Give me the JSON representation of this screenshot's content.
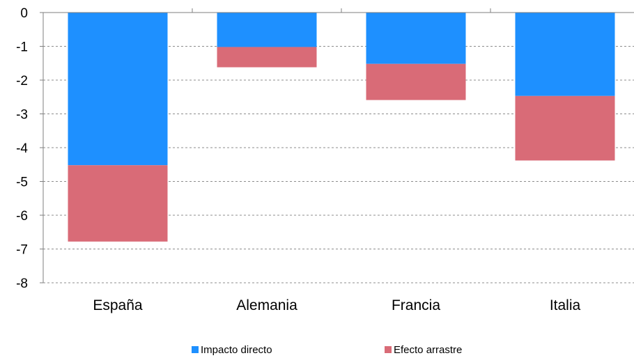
{
  "chart_data": {
    "type": "bar",
    "stacked": true,
    "categories": [
      "España",
      "Alemania",
      "Francia",
      "Italia"
    ],
    "series": [
      {
        "name": "Impacto directo",
        "color": "#1E90FF",
        "values": [
          -4.52,
          -1.02,
          -1.52,
          -2.47
        ]
      },
      {
        "name": "Efecto arrastre",
        "color": "#D96B77",
        "values": [
          -2.26,
          -0.6,
          -1.07,
          -1.91
        ]
      }
    ],
    "title": "",
    "xlabel": "",
    "ylabel": "",
    "ylim": [
      -8,
      0
    ],
    "yticks": [
      0,
      -1,
      -2,
      -3,
      -4,
      -5,
      -6,
      -7,
      -8
    ],
    "ytick_labels": [
      "0",
      "-1",
      "-2",
      "-3",
      "-4",
      "-5",
      "-6",
      "-7",
      "-8"
    ],
    "grid": "horizontal-dashed",
    "legend_position": "bottom"
  }
}
